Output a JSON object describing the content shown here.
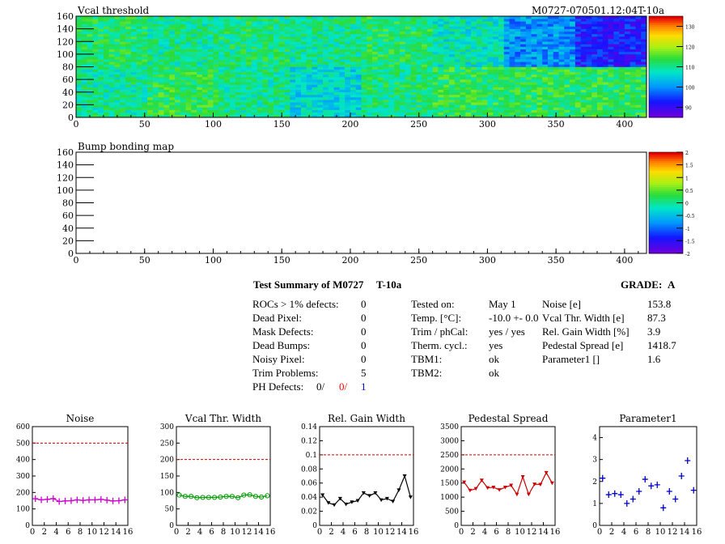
{
  "header_right": "M0727-070501.12:04T-10a",
  "summary": {
    "title": "Test Summary of M0727",
    "temp_tag": "T-10a",
    "grade_label": "GRADE:",
    "grade": "A",
    "left_rows": [
      {
        "label": "ROCs > 1% defects:",
        "value": "0"
      },
      {
        "label": "Dead Pixel:",
        "value": "0"
      },
      {
        "label": "Mask Defects:",
        "value": "0"
      },
      {
        "label": "Dead Bumps:",
        "value": "0"
      },
      {
        "label": "Noisy Pixel:",
        "value": "0"
      },
      {
        "label": "Trim Problems:",
        "value": "5"
      }
    ],
    "ph_defects": {
      "label": "PH Defects:",
      "v1": "0/",
      "v2": "0/",
      "v3": "1",
      "c2": "#ff0000",
      "c3": "#0000cc"
    },
    "mid_rows": [
      {
        "label": "Tested on:",
        "value": "May 1"
      },
      {
        "label": "Temp. [°C]:",
        "value": "-10.0 +- 0.0"
      },
      {
        "label": "Trim / phCal:",
        "value": "yes / yes"
      },
      {
        "label": "Therm. cycl.:",
        "value": "yes"
      },
      {
        "label": "TBM1:",
        "value": "ok"
      },
      {
        "label": "TBM2:",
        "value": "ok"
      }
    ],
    "right_rows": [
      {
        "label": "Noise [e]",
        "value": "153.8"
      },
      {
        "label": "Vcal Thr. Width [e]",
        "value": "87.3"
      },
      {
        "label": "Rel. Gain Width [%]",
        "value": "3.9"
      },
      {
        "label": "Pedestal Spread [e]",
        "value": "1418.7"
      },
      {
        "label": "Parameter1 []",
        "value": "1.6"
      }
    ]
  },
  "chart_data": [
    {
      "type": "heatmap",
      "title": "Vcal threshold",
      "xlim": [
        0,
        416
      ],
      "ylim": [
        0,
        160
      ],
      "xticks": [
        "0",
        "50",
        "100",
        "150",
        "200",
        "250",
        "300",
        "350",
        "400"
      ],
      "yticks": [
        "0",
        "20",
        "40",
        "60",
        "80",
        "100",
        "120",
        "140",
        "160"
      ],
      "colorbar_ticks": [
        "90",
        "100",
        "110",
        "120",
        "130"
      ],
      "zlim": [
        85,
        135
      ],
      "roc_means": {
        "top": [
          112,
          110,
          111,
          110,
          112,
          108,
          100,
          92,
          106
        ],
        "bottom": [
          110,
          113,
          110,
          106,
          111,
          113,
          113,
          113,
          110
        ]
      }
    },
    {
      "type": "heatmap",
      "title": "Bump bonding map",
      "xlim": [
        0,
        416
      ],
      "ylim": [
        0,
        160
      ],
      "xticks": [
        "0",
        "50",
        "100",
        "150",
        "200",
        "250",
        "300",
        "350",
        "400"
      ],
      "yticks": [
        "0",
        "20",
        "40",
        "60",
        "80",
        "100",
        "120",
        "140",
        "160"
      ],
      "colorbar_ticks": [
        "-2",
        "-1.5",
        "-1",
        "-0.5",
        "0",
        "0.5",
        "1",
        "1.5",
        "2"
      ],
      "zlim": [
        -2,
        2
      ]
    },
    {
      "type": "line",
      "title": "Noise",
      "color": "#cc00cc",
      "marker": "cross",
      "ylim": [
        0,
        600
      ],
      "yticks": [
        "0",
        "100",
        "200",
        "300",
        "400",
        "500",
        "600"
      ],
      "xticks": [
        "0",
        "2",
        "4",
        "6",
        "8",
        "10",
        "12",
        "14",
        "16"
      ],
      "reference": 500,
      "x": [
        0,
        1,
        2,
        3,
        4,
        5,
        6,
        7,
        8,
        9,
        10,
        11,
        12,
        13,
        14,
        15
      ],
      "y": [
        162,
        155,
        158,
        163,
        145,
        148,
        150,
        155,
        152,
        155,
        155,
        158,
        153,
        148,
        150,
        155
      ]
    },
    {
      "type": "line",
      "title": "Vcal Thr. Width",
      "color": "#009900",
      "marker": "circle",
      "ylim": [
        0,
        300
      ],
      "yticks": [
        "0",
        "50",
        "100",
        "150",
        "200",
        "250",
        "300"
      ],
      "xticks": [
        "0",
        "2",
        "4",
        "6",
        "8",
        "10",
        "12",
        "14",
        "16"
      ],
      "reference": 200,
      "x": [
        0,
        1,
        2,
        3,
        4,
        5,
        6,
        7,
        8,
        9,
        10,
        11,
        12,
        13,
        14,
        15
      ],
      "y": [
        92,
        88,
        88,
        84,
        85,
        85,
        85,
        86,
        88,
        88,
        84,
        92,
        93,
        88,
        86,
        90
      ]
    },
    {
      "type": "line",
      "title": "Rel. Gain Width",
      "color": "#000000",
      "marker": "triangle",
      "ylim": [
        0,
        0.14
      ],
      "yticks": [
        "0",
        "0.02",
        "0.04",
        "0.06",
        "0.08",
        "0.1",
        "0.12",
        "0.14"
      ],
      "xticks": [
        "0",
        "2",
        "4",
        "6",
        "8",
        "10",
        "12",
        "14",
        "16"
      ],
      "reference": 0.1,
      "x": [
        0,
        1,
        2,
        3,
        4,
        5,
        6,
        7,
        8,
        9,
        10,
        11,
        12,
        13,
        14,
        15
      ],
      "y": [
        0.043,
        0.032,
        0.029,
        0.038,
        0.03,
        0.033,
        0.035,
        0.046,
        0.042,
        0.046,
        0.036,
        0.038,
        0.034,
        0.05,
        0.07,
        0.04
      ]
    },
    {
      "type": "line",
      "title": "Pedestal Spread",
      "color": "#cc0000",
      "marker": "triangle",
      "ylim": [
        0,
        3500
      ],
      "yticks": [
        "0",
        "500",
        "1000",
        "1500",
        "2000",
        "2500",
        "3000",
        "3500"
      ],
      "xticks": [
        "0",
        "2",
        "4",
        "6",
        "8",
        "10",
        "12",
        "14",
        "16"
      ],
      "reference": 2500,
      "x": [
        0,
        1,
        2,
        3,
        4,
        5,
        6,
        7,
        8,
        9,
        10,
        11,
        12,
        13,
        14,
        15
      ],
      "y": [
        1530,
        1240,
        1300,
        1600,
        1330,
        1350,
        1260,
        1350,
        1420,
        1100,
        1720,
        1100,
        1460,
        1450,
        1870,
        1500
      ]
    },
    {
      "type": "scatter",
      "title": "Parameter1",
      "color": "#0000cc",
      "marker": "cross",
      "ylim": [
        0,
        4.5
      ],
      "yticks": [
        "0",
        "1",
        "2",
        "3",
        "4"
      ],
      "xticks": [
        "0",
        "2",
        "4",
        "6",
        "8",
        "10",
        "12",
        "14",
        "16"
      ],
      "x": [
        0,
        1,
        2,
        3,
        4,
        5,
        6,
        7,
        8,
        9,
        10,
        11,
        12,
        13,
        14,
        15
      ],
      "y": [
        2.15,
        1.4,
        1.45,
        1.4,
        1.0,
        1.2,
        1.55,
        2.1,
        1.8,
        1.85,
        0.8,
        1.55,
        1.2,
        2.25,
        2.95,
        1.6
      ]
    }
  ]
}
